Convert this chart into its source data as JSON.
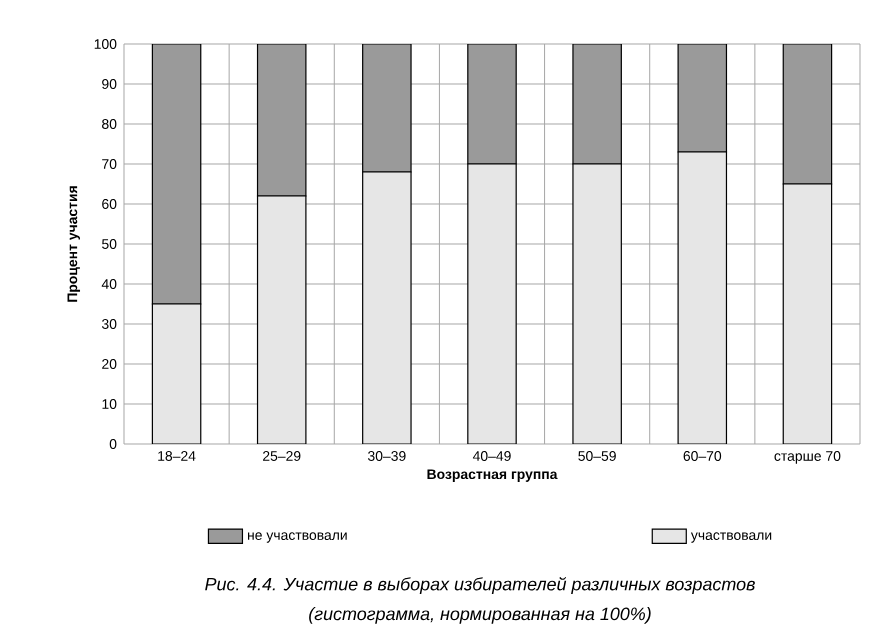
{
  "chart_data": {
    "type": "bar",
    "stacked": true,
    "xlabel": "Возрастная группа",
    "ylabel": "Процент участия",
    "categories": [
      "18–24",
      "25–29",
      "30–39",
      "40–49",
      "50–59",
      "60–70",
      "старше 70"
    ],
    "series": [
      {
        "name": "участвовали",
        "color": "#e6e6e6",
        "values": [
          35,
          62,
          68,
          70,
          70,
          73,
          65
        ]
      },
      {
        "name": "не участвовали",
        "color": "#9a9a9a",
        "values": [
          65,
          38,
          32,
          30,
          30,
          27,
          35
        ]
      }
    ],
    "ylim": [
      0,
      100
    ],
    "yticks": [
      0,
      10,
      20,
      30,
      40,
      50,
      60,
      70,
      80,
      90,
      100
    ],
    "grid": true,
    "legend": "bottom",
    "annotations": [
      "Рис. 4.4. Участие в выборах избирателей различных возрастов",
      "(гистограмма, нормированная на 100%)"
    ]
  }
}
